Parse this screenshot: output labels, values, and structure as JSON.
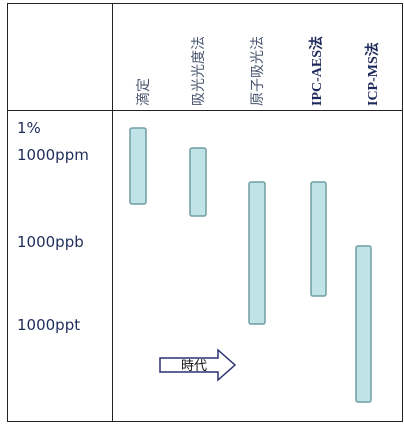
{
  "columns": [
    "滴定",
    "吸光光度法",
    "原子吸光法",
    "IPC-AES法",
    "ICP-MS法"
  ],
  "rows": [
    "1%",
    "1000ppm",
    "1000ppb",
    "1000ppt"
  ],
  "arrow": {
    "label": "時代"
  }
}
